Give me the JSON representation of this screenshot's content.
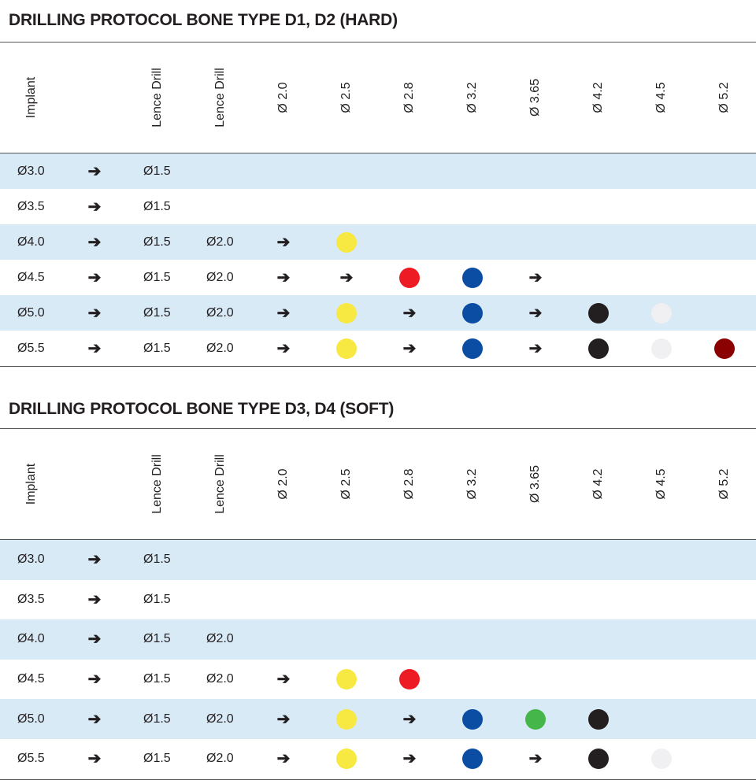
{
  "colors": {
    "yellow": "#f7e842",
    "red": "#ed1c24",
    "blue": "#0b4da2",
    "black": "#231f20",
    "white": "#f0f0f2",
    "darkred": "#8b0000",
    "green": "#45b649",
    "band": "#d9eaf7"
  },
  "headers": [
    "Implant",
    "",
    "Lence Drill",
    "Lence Drill",
    "Ø 2.0",
    "Ø 2.5",
    "Ø 2.8",
    "Ø 3.2",
    "Ø 3.65",
    "Ø 4.2",
    "Ø 4.5",
    "Ø 5.2"
  ],
  "tables": [
    {
      "title": "DRILLING PROTOCOL BONE TYPE D1, D2 (HARD)",
      "rows": [
        [
          "Ø3.0",
          "arrow",
          "Ø1.5",
          "",
          "",
          "",
          "",
          "",
          "",
          "",
          "",
          ""
        ],
        [
          "Ø3.5",
          "arrow",
          "Ø1.5",
          "",
          "",
          "",
          "",
          "",
          "",
          "",
          "",
          ""
        ],
        [
          "Ø4.0",
          "arrow",
          "Ø1.5",
          "Ø2.0",
          "arrow",
          "yellow",
          "",
          "",
          "",
          "",
          "",
          ""
        ],
        [
          "Ø4.5",
          "arrow",
          "Ø1.5",
          "Ø2.0",
          "arrow",
          "arrow",
          "red",
          "blue",
          "arrow",
          "",
          "",
          ""
        ],
        [
          "Ø5.0",
          "arrow",
          "Ø1.5",
          "Ø2.0",
          "arrow",
          "yellow",
          "arrow",
          "blue",
          "arrow",
          "black",
          "white",
          ""
        ],
        [
          "Ø5.5",
          "arrow",
          "Ø1.5",
          "Ø2.0",
          "arrow",
          "yellow",
          "arrow",
          "blue",
          "arrow",
          "black",
          "white",
          "darkred"
        ]
      ]
    },
    {
      "title": "DRILLING PROTOCOL BONE TYPE D3, D4 (SOFT)",
      "rows": [
        [
          "Ø3.0",
          "arrow",
          "Ø1.5",
          "",
          "",
          "",
          "",
          "",
          "",
          "",
          "",
          ""
        ],
        [
          "Ø3.5",
          "arrow",
          "Ø1.5",
          "",
          "",
          "",
          "",
          "",
          "",
          "",
          "",
          ""
        ],
        [
          "Ø4.0",
          "arrow",
          "Ø1.5",
          "Ø2.0",
          "",
          "",
          "",
          "",
          "",
          "",
          "",
          ""
        ],
        [
          "Ø4.5",
          "arrow",
          "Ø1.5",
          "Ø2.0",
          "arrow",
          "yellow",
          "red",
          "",
          "",
          "",
          "",
          ""
        ],
        [
          "Ø5.0",
          "arrow",
          "Ø1.5",
          "Ø2.0",
          "arrow",
          "yellow",
          "arrow",
          "blue",
          "green",
          "black",
          "",
          ""
        ],
        [
          "Ø5.5",
          "arrow",
          "Ø1.5",
          "Ø2.0",
          "arrow",
          "yellow",
          "arrow",
          "blue",
          "arrow",
          "black",
          "white",
          ""
        ]
      ]
    }
  ]
}
